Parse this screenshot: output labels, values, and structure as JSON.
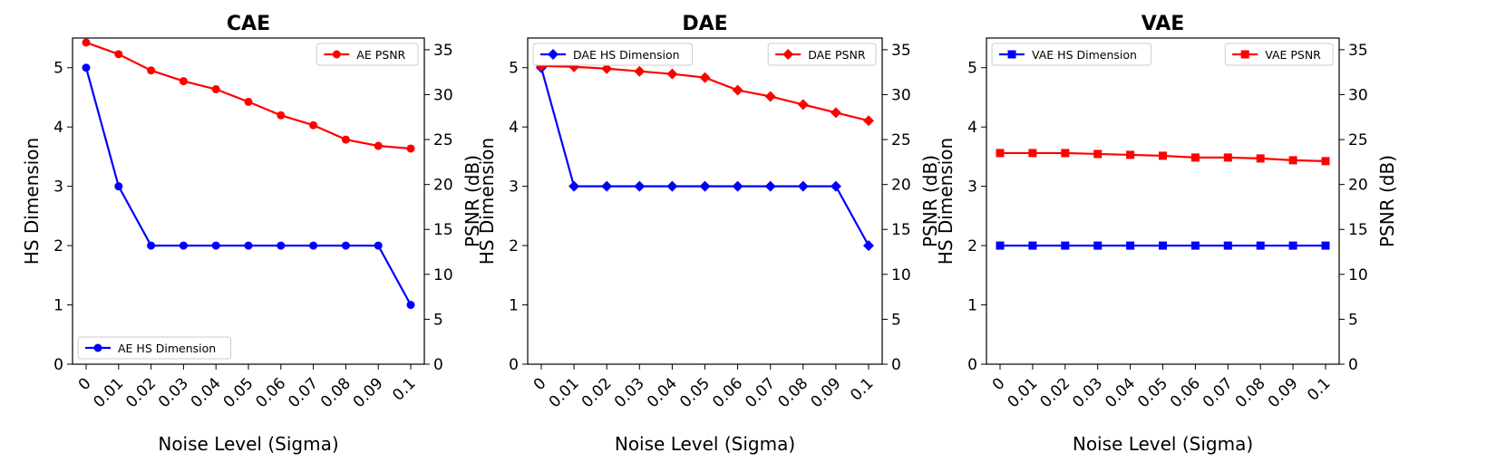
{
  "chart_data": [
    {
      "type": "line",
      "title": "CAE",
      "xlabel": "Noise Level (Sigma)",
      "ylabel": "HS Dimension",
      "y2label": "PSNR (dB)",
      "categories": [
        "0",
        "0.01",
        "0.02",
        "0.03",
        "0.04",
        "0.05",
        "0.06",
        "0.07",
        "0.08",
        "0.09",
        "0.1"
      ],
      "ylim": [
        0,
        5.5
      ],
      "y2lim": [
        0,
        36.3
      ],
      "yticks": [
        0,
        1,
        2,
        3,
        4,
        5
      ],
      "y2ticks": [
        0,
        5,
        10,
        15,
        20,
        25,
        30,
        35
      ],
      "grid": false,
      "series": [
        {
          "name": "AE HS Dimension",
          "axis": "left",
          "color": "#0000ff",
          "marker": "circle",
          "values": [
            5,
            3,
            2,
            2,
            2,
            2,
            2,
            2,
            2,
            2,
            1
          ]
        },
        {
          "name": "AE PSNR",
          "axis": "right",
          "color": "#ff0000",
          "marker": "circle",
          "values": [
            35.8,
            34.5,
            32.7,
            31.5,
            30.6,
            29.2,
            27.7,
            26.6,
            25.0,
            24.3,
            24.0
          ]
        }
      ],
      "legends": [
        {
          "position": "lower-left",
          "entries": [
            "AE HS Dimension"
          ]
        },
        {
          "position": "upper-right",
          "entries": [
            "AE PSNR"
          ]
        }
      ]
    },
    {
      "type": "line",
      "title": "DAE",
      "xlabel": "Noise Level (Sigma)",
      "ylabel": "HS Dimension",
      "y2label": "PSNR (dB)",
      "categories": [
        "0",
        "0.01",
        "0.02",
        "0.03",
        "0.04",
        "0.05",
        "0.06",
        "0.07",
        "0.08",
        "0.09",
        "0.1"
      ],
      "ylim": [
        0,
        5.5
      ],
      "y2lim": [
        0,
        36.3
      ],
      "yticks": [
        0,
        1,
        2,
        3,
        4,
        5
      ],
      "y2ticks": [
        0,
        5,
        10,
        15,
        20,
        25,
        30,
        35
      ],
      "grid": false,
      "series": [
        {
          "name": "DAE HS Dimension",
          "axis": "left",
          "color": "#0000ff",
          "marker": "diamond",
          "values": [
            5,
            3,
            3,
            3,
            3,
            3,
            3,
            3,
            3,
            3,
            2
          ]
        },
        {
          "name": "DAE PSNR",
          "axis": "right",
          "color": "#ff0000",
          "marker": "diamond",
          "values": [
            33.2,
            33.1,
            32.9,
            32.6,
            32.3,
            31.9,
            30.5,
            29.8,
            28.9,
            28.0,
            27.1
          ]
        }
      ],
      "legends": [
        {
          "position": "upper-left",
          "entries": [
            "DAE HS Dimension"
          ]
        },
        {
          "position": "upper-right",
          "entries": [
            "DAE PSNR"
          ]
        }
      ]
    },
    {
      "type": "line",
      "title": "VAE",
      "xlabel": "Noise Level (Sigma)",
      "ylabel": "HS Dimension",
      "y2label": "PSNR (dB)",
      "categories": [
        "0",
        "0.01",
        "0.02",
        "0.03",
        "0.04",
        "0.05",
        "0.06",
        "0.07",
        "0.08",
        "0.09",
        "0.1"
      ],
      "ylim": [
        0,
        5.5
      ],
      "y2lim": [
        0,
        36.3
      ],
      "yticks": [
        0,
        1,
        2,
        3,
        4,
        5
      ],
      "y2ticks": [
        0,
        5,
        10,
        15,
        20,
        25,
        30,
        35
      ],
      "grid": false,
      "series": [
        {
          "name": "VAE HS Dimension",
          "axis": "left",
          "color": "#0000ff",
          "marker": "square",
          "values": [
            2,
            2,
            2,
            2,
            2,
            2,
            2,
            2,
            2,
            2,
            2
          ]
        },
        {
          "name": "VAE PSNR",
          "axis": "right",
          "color": "#ff0000",
          "marker": "square",
          "values": [
            23.5,
            23.5,
            23.5,
            23.4,
            23.3,
            23.2,
            23.0,
            23.0,
            22.9,
            22.7,
            22.6
          ]
        }
      ],
      "legends": [
        {
          "position": "upper-left",
          "entries": [
            "VAE HS Dimension"
          ]
        },
        {
          "position": "upper-right",
          "entries": [
            "VAE PSNR"
          ]
        }
      ]
    }
  ]
}
